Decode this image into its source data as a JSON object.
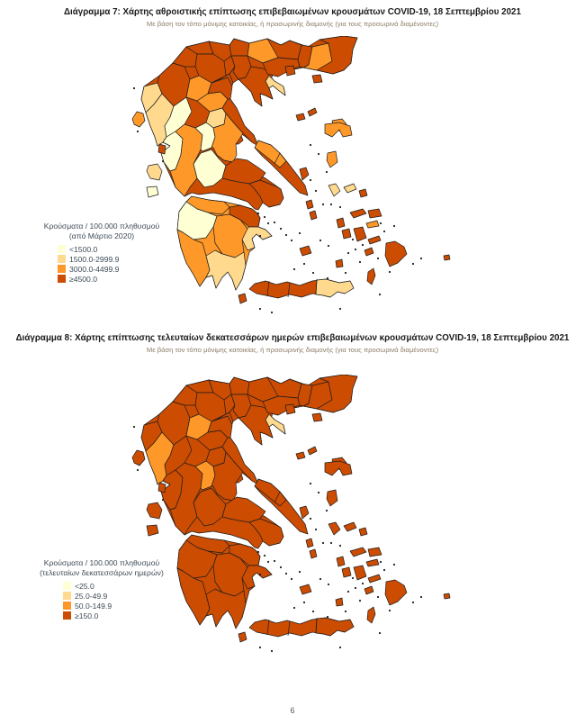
{
  "page": {
    "number": "6"
  },
  "palette": {
    "c1": "#FFFFD4",
    "c2": "#FED98E",
    "c3": "#FE9929",
    "c4": "#CC4C02",
    "border": "#1c1c1c",
    "speck": "#1f1f1f"
  },
  "figure7": {
    "title": "Διάγραμμα 7: Χάρτης αθροιστικής επίπτωσης επιβεβαιωμένων κρουσμάτων COVID-19, 18 Σεπτεμβρίου 2021",
    "subtitle": "Με βάση τον τόπο μόνιμης κατοικίας, ή προσωρινής διαμονής (για τους προσωρινά διαμένοντες)",
    "legend": {
      "title_line1": "Κρούσματα / 100.000 πληθυσμού",
      "title_line2": "(από Μάρτιο 2020)",
      "items": [
        {
          "label": "<1500.0",
          "color": "#FFFFD4"
        },
        {
          "label": "1500.0-2999.9",
          "color": "#FED98E"
        },
        {
          "label": "3000.0-4499.9",
          "color": "#FE9929"
        },
        {
          "label": "≥4500.0",
          "color": "#CC4C02"
        }
      ]
    }
  },
  "figure8": {
    "title": "Διάγραμμα 8: Χάρτης επίπτωσης τελευταίων δεκατεσσάρων ημερών επιβεβαιωμένων κρουσμάτων COVID-19, 18 Σεπτεμβρίου 2021",
    "subtitle": "Με βάση τον τόπο μόνιμης κατοικίας, ή προσωρινής διαμονής (για τους προσωρινά διαμένοντες)",
    "legend": {
      "title_line1": "Κρούσματα / 100.000 πληθυσμού",
      "title_line2": "(τελευταίων δεκατεσσάρων ημερών)",
      "items": [
        {
          "label": "<25.0",
          "color": "#FFFFD4"
        },
        {
          "label": "25.0-49.9",
          "color": "#FED98E"
        },
        {
          "label": "50.0-149.9",
          "color": "#FE9929"
        },
        {
          "label": "≥150.0",
          "color": "#CC4C02"
        }
      ]
    }
  },
  "map_bases": {
    "mainland-base": [
      "c4",
      "c4"
    ],
    "peloponnese-base": [
      "c3",
      "c4"
    ],
    "euboea-base": [
      "c4",
      "c4"
    ],
    "crete-base": [
      "c4",
      "c4"
    ]
  },
  "map_regions": {
    "thesprotia": [
      "c2",
      "c4"
    ],
    "ioannina": [
      "c4",
      "c4"
    ],
    "preveza": [
      "c2",
      "c3"
    ],
    "arta": [
      "c1",
      "c4"
    ],
    "kastoria": [
      "c4",
      "c4"
    ],
    "florina": [
      "c4",
      "c4"
    ],
    "kozani": [
      "c4",
      "c4"
    ],
    "grevena": [
      "c3",
      "c3"
    ],
    "pella": [
      "c4",
      "c4"
    ],
    "kilkis": [
      "c4",
      "c4"
    ],
    "imathia": [
      "c4",
      "c4"
    ],
    "pieria": [
      "c4",
      "c4"
    ],
    "thessaloniki": [
      "c4",
      "c4"
    ],
    "serres": [
      "c3",
      "c4"
    ],
    "chalkidiki": [
      "c4",
      "c4"
    ],
    "athos": [
      "c2",
      "c2"
    ],
    "drama": [
      "c4",
      "c4"
    ],
    "kavala": [
      "c4",
      "c4"
    ],
    "xanthi": [
      "c4",
      "c4"
    ],
    "rhodope": [
      "c3",
      "c4"
    ],
    "evros": [
      "c4",
      "c4"
    ],
    "trikala": [
      "c3",
      "c4"
    ],
    "larissa": [
      "c4",
      "c4"
    ],
    "karditsa": [
      "c2",
      "c4"
    ],
    "magnesia": [
      "c4",
      "c4"
    ],
    "acarnania": [
      "c1",
      "c4"
    ],
    "aetolia": [
      "c3",
      "c4"
    ],
    "evrytania": [
      "c1",
      "c3"
    ],
    "phthiotis": [
      "c3",
      "c4"
    ],
    "phocis": [
      "c1",
      "c4"
    ],
    "boeotia": [
      "c4",
      "c4"
    ],
    "attica": [
      "c4",
      "c4"
    ],
    "euboea-north": [
      "c3",
      "c4"
    ],
    "achaea": [
      "c3",
      "c4"
    ],
    "corinthia": [
      "c4",
      "c4"
    ],
    "argolida": [
      "c2",
      "c4"
    ],
    "arcadia": [
      "c3",
      "c4"
    ],
    "elis": [
      "c1",
      "c4"
    ],
    "messenia": [
      "c3",
      "c4"
    ],
    "laconia": [
      "c2",
      "c4"
    ],
    "lasithi": [
      "c2",
      "c4"
    ],
    "corfu": [
      "c3",
      "c4"
    ],
    "lefkada": [
      "c4",
      "c4"
    ],
    "kefalonia": [
      "c2",
      "c4"
    ],
    "zakynthos": [
      "c1",
      "c4"
    ],
    "kythera": [
      "c4",
      "c4"
    ],
    "thasos": [
      "c4",
      "c4"
    ],
    "samothrace": [
      "c4",
      "c4"
    ],
    "limnos": [
      "c3",
      "c4"
    ],
    "lesbos": [
      "c3",
      "c4"
    ],
    "chios": [
      "c3",
      "c4"
    ],
    "skopelos": [
      "c4",
      "c4"
    ],
    "alonnisos": [
      "c4",
      "c4"
    ],
    "skyros": [
      "c4",
      "c4"
    ],
    "andros": [
      "c2",
      "c4"
    ],
    "tinos": [
      "c2",
      "c4"
    ],
    "mykonos": [
      "c4",
      "c4"
    ],
    "ikaria": [
      "c4",
      "c4"
    ],
    "samos": [
      "c4",
      "c4"
    ],
    "kea": [
      "c4",
      "c4"
    ],
    "kythnos": [
      "c4",
      "c4"
    ],
    "syros": [
      "c4",
      "c4"
    ],
    "paros": [
      "c4",
      "c4"
    ],
    "naxos": [
      "c4",
      "c4"
    ],
    "milos": [
      "c4",
      "c4"
    ],
    "santorini": [
      "c4",
      "c4"
    ],
    "amorgos": [
      "c4",
      "c4"
    ],
    "astypalea": [
      "c4",
      "c4"
    ],
    "kos": [
      "c3",
      "c4"
    ],
    "rhodes": [
      "c4",
      "c4"
    ],
    "karpathos": [
      "c4",
      "c4"
    ],
    "kastellorizo": [
      "c4",
      "c4"
    ]
  }
}
